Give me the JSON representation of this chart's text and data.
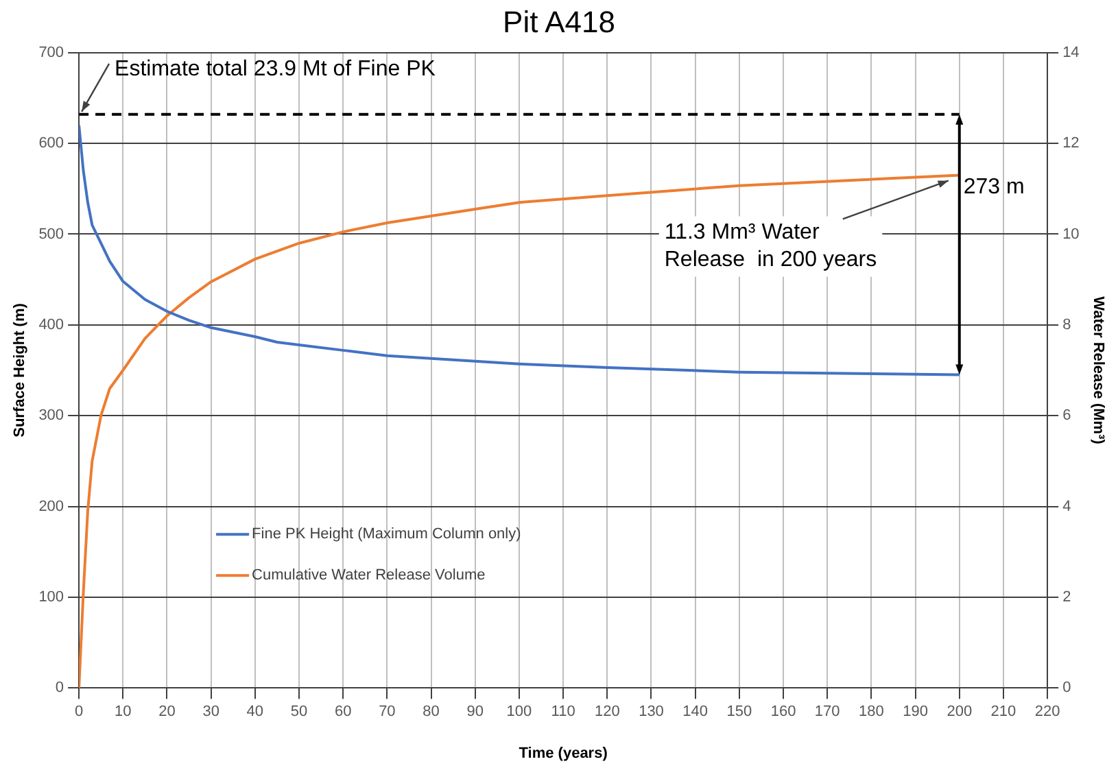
{
  "chart_data": {
    "type": "line",
    "title": "Pit A418",
    "xlabel": "Time (years)",
    "ylabel": "Surface Height (m)",
    "y2label": "Water Release (Mm³)",
    "xlim": [
      0,
      220
    ],
    "xticks": [
      0,
      10,
      20,
      30,
      40,
      50,
      60,
      70,
      80,
      90,
      100,
      110,
      120,
      130,
      140,
      150,
      160,
      170,
      180,
      190,
      200,
      210,
      220
    ],
    "ylim": [
      0,
      700
    ],
    "yticks": [
      0,
      100,
      200,
      300,
      400,
      500,
      600,
      700
    ],
    "y2lim": [
      0,
      14
    ],
    "y2ticks": [
      0,
      2,
      4,
      6,
      8,
      10,
      12,
      14
    ],
    "grid": true,
    "legend": "bottom left",
    "marker": "none",
    "line_style": "solid",
    "series": [
      {
        "name": "Fine PK Height (Maximum Column only)",
        "color": "#4472c4",
        "x": [
          0,
          1,
          2,
          3,
          5,
          7,
          10,
          15,
          20,
          25,
          30,
          40,
          45,
          50,
          60,
          70,
          80,
          90,
          100,
          120,
          150,
          200
        ],
        "values": [
          620,
          570,
          535,
          510,
          490,
          470,
          448,
          428,
          415,
          405,
          397,
          387,
          381,
          378,
          372,
          366,
          363,
          360,
          357,
          353,
          348,
          345
        ]
      },
      {
        "name": "Cumulative Water Release Volume",
        "color": "#ed7d31",
        "axis": "y2",
        "x": [
          0,
          1,
          2,
          3,
          5,
          7,
          10,
          15,
          20,
          25,
          30,
          40,
          50,
          60,
          70,
          80,
          90,
          100,
          120,
          150,
          200
        ],
        "values": [
          0,
          2.1,
          3.9,
          5.0,
          6.0,
          6.6,
          7.0,
          7.7,
          8.2,
          8.6,
          8.95,
          9.45,
          9.8,
          10.05,
          10.25,
          10.4,
          10.55,
          10.7,
          10.85,
          11.07,
          11.3
        ]
      }
    ],
    "ref_lines": [
      {
        "axis": "y",
        "value": 632,
        "label": "Estimate total 23.9 Mt of Fine PK",
        "color": "#000000",
        "line_style": "dashed"
      }
    ],
    "annotations": [
      "273 m",
      {
        "text": "11.3 Mm³ Water Release  in 200 years",
        "x": 200,
        "y": 565
      }
    ]
  }
}
